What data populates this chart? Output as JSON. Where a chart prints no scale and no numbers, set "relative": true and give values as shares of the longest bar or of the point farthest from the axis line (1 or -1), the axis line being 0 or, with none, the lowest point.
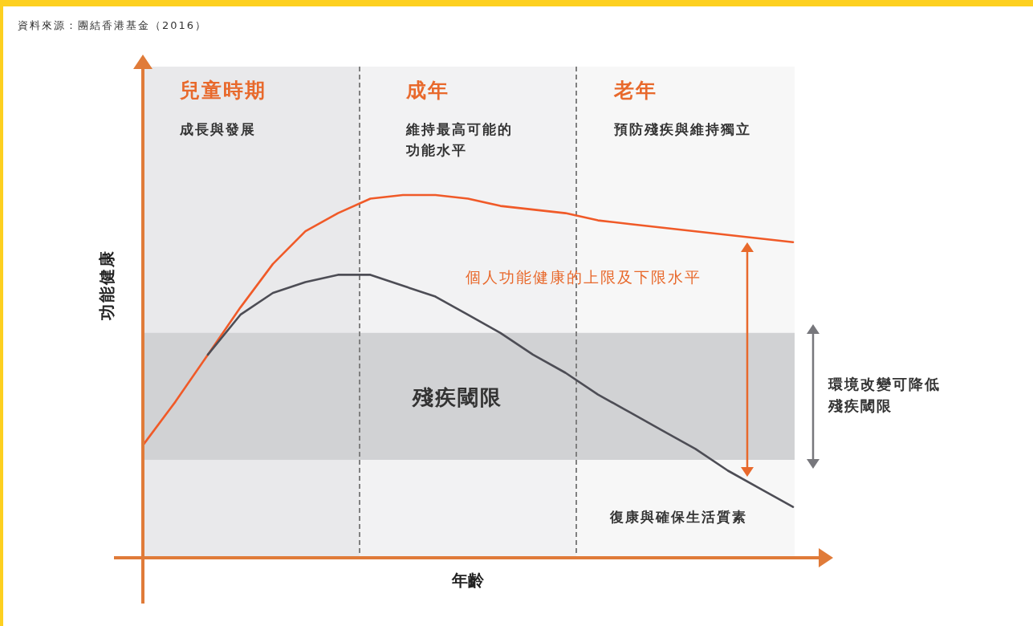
{
  "chart_data": {
    "type": "line",
    "relative": true,
    "xlabel": "年齡",
    "ylabel": "功能健康",
    "categories": [
      null,
      null,
      null,
      null,
      null,
      null,
      null,
      null,
      null,
      null,
      null,
      null,
      null,
      null,
      null,
      null,
      null,
      null,
      null,
      null,
      null
    ],
    "series": [
      {
        "color": "#f05a28",
        "values": [
          0.31,
          0.43,
          0.56,
          0.69,
          0.81,
          0.9,
          0.95,
          0.99,
          1.0,
          1.0,
          0.99,
          0.97,
          0.96,
          0.95,
          0.93,
          0.92,
          0.91,
          0.9,
          0.89,
          0.88,
          0.87
        ]
      },
      {
        "color": "#4d4d55",
        "values": [
          null,
          null,
          0.56,
          0.67,
          0.73,
          0.76,
          0.78,
          0.78,
          0.75,
          0.72,
          0.67,
          0.62,
          0.56,
          0.51,
          0.45,
          0.4,
          0.35,
          0.3,
          0.24,
          0.19,
          0.14
        ]
      }
    ],
    "bands": [
      {
        "axis": "y",
        "from": 0.27,
        "to": 0.62,
        "label": "殘疾閾限",
        "color": "#d1d2d4"
      }
    ],
    "annotations": [
      "資料來源：團結香港基金（2016）",
      "兒童時期",
      "成長與發展",
      "成年",
      "維持最高可能的功能水平",
      "老年",
      "預防殘疾與維持獨立",
      "個人功能健康的上限及下限水平",
      "環境改變可降低殘疾閾限",
      "復康與確保生活質素"
    ]
  }
}
